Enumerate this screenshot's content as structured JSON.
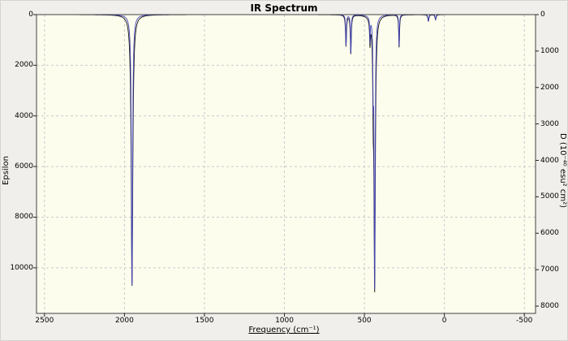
{
  "chart_data": {
    "type": "line",
    "title": "IR Spectrum",
    "xlabel": "Frequency (cm⁻¹)",
    "ylabel_left": "Epsilon",
    "ylabel_right": "D (10⁻⁴⁰ esu² cm²)",
    "x_axis": {
      "start": 2550,
      "end": -570,
      "ticks": [
        2500,
        2000,
        1500,
        1000,
        500,
        0,
        -500
      ]
    },
    "y_axis_left": {
      "label": "Epsilon",
      "min": 0,
      "max": 11800,
      "ticks": [
        0,
        2000,
        4000,
        6000,
        8000,
        10000
      ],
      "inverted": true
    },
    "y_axis_right": {
      "label": "D (10⁻⁴⁰ esu² cm²)",
      "min": 0,
      "max": 8200,
      "ticks": [
        0,
        1000,
        2000,
        3000,
        4000,
        5000,
        6000,
        7000,
        8000
      ],
      "inverted": true
    },
    "series": [
      {
        "name": "Epsilon",
        "color": "#141414",
        "axis": "left"
      },
      {
        "name": "D",
        "color": "#4444bb",
        "axis": "right"
      }
    ],
    "d_width_factor": 0.72,
    "peaks": [
      {
        "frequency": 1953,
        "epsilon": 10750,
        "d": 7470,
        "width": 6
      },
      {
        "frequency": 615,
        "epsilon": 1250,
        "d": 869,
        "width": 3.5
      },
      {
        "frequency": 585,
        "epsilon": 1550,
        "d": 1077,
        "width": 3.5
      },
      {
        "frequency": 465,
        "epsilon": 950,
        "d": 660,
        "width": 3
      },
      {
        "frequency": 445,
        "epsilon": 2400,
        "d": 1668,
        "width": 3
      },
      {
        "frequency": 436,
        "epsilon": 10750,
        "d": 7470,
        "width": 5
      },
      {
        "frequency": 283,
        "epsilon": 1320,
        "d": 917,
        "width": 3
      },
      {
        "frequency": 100,
        "epsilon": 260,
        "d": 181,
        "width": 4
      },
      {
        "frequency": 55,
        "epsilon": 200,
        "d": 139,
        "width": 4
      }
    ],
    "grid": {
      "on": true,
      "style": "dashed",
      "color": "#c9c9c9"
    },
    "plot_background": "#fdfdee",
    "figure_background": "#f0efeb",
    "frame_color": "#404040"
  }
}
